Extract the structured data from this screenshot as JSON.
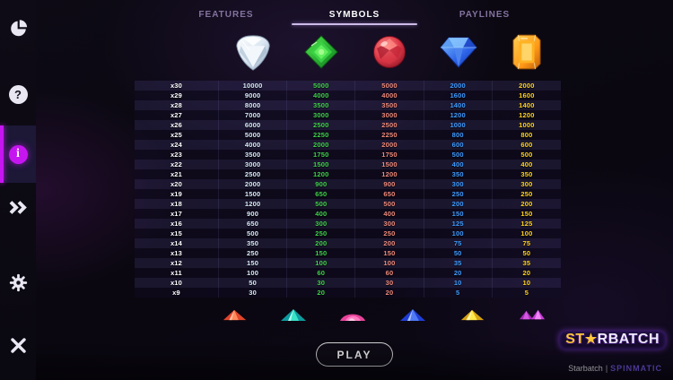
{
  "colors": {
    "accent_magenta": "#c516f0",
    "tab_inactive": "#84739f",
    "tab_active": "#ffffff",
    "underline": "#cdbbe9",
    "logo_gold": "#ffc83a",
    "provider_purple": "#7a5cf0"
  },
  "sidebar": {
    "icons": [
      "pie-chart-icon",
      "help-icon",
      "info-icon",
      "skip-forward-icon",
      "settings-gear-icon",
      "close-icon"
    ],
    "active_item": "info",
    "help_glyph": "?",
    "info_glyph": "i"
  },
  "tabs": [
    {
      "label": "FEATURES",
      "active": false
    },
    {
      "label": "SYMBOLS",
      "active": true
    },
    {
      "label": "PAYLINES",
      "active": false
    }
  ],
  "paytable": {
    "symbols": [
      "white-diamond",
      "green-gem",
      "red-gem",
      "blue-diamond",
      "orange-gem"
    ],
    "value_colors": [
      "#d9ecfb",
      "#3fd34a",
      "#f08a7a",
      "#3d9bff",
      "#ffd21f"
    ],
    "rows": [
      {
        "multiplier": "x30",
        "values": [
          10000,
          5000,
          5000,
          2000,
          2000
        ]
      },
      {
        "multiplier": "x29",
        "values": [
          9000,
          4000,
          4000,
          1600,
          1600
        ]
      },
      {
        "multiplier": "x28",
        "values": [
          8000,
          3500,
          3500,
          1400,
          1400
        ]
      },
      {
        "multiplier": "x27",
        "values": [
          7000,
          3000,
          3000,
          1200,
          1200
        ]
      },
      {
        "multiplier": "x26",
        "values": [
          6000,
          2500,
          2500,
          1000,
          1000
        ]
      },
      {
        "multiplier": "x25",
        "values": [
          5000,
          2250,
          2250,
          800,
          800
        ]
      },
      {
        "multiplier": "x24",
        "values": [
          4000,
          2000,
          2000,
          600,
          600
        ]
      },
      {
        "multiplier": "x23",
        "values": [
          3500,
          1750,
          1750,
          500,
          500
        ]
      },
      {
        "multiplier": "x22",
        "values": [
          3000,
          1500,
          1500,
          400,
          400
        ]
      },
      {
        "multiplier": "x21",
        "values": [
          2500,
          1200,
          1200,
          350,
          350
        ]
      },
      {
        "multiplier": "x20",
        "values": [
          2000,
          900,
          900,
          300,
          300
        ]
      },
      {
        "multiplier": "x19",
        "values": [
          1500,
          650,
          650,
          250,
          250
        ]
      },
      {
        "multiplier": "x18",
        "values": [
          1200,
          500,
          500,
          200,
          200
        ]
      },
      {
        "multiplier": "x17",
        "values": [
          900,
          400,
          400,
          150,
          150
        ]
      },
      {
        "multiplier": "x16",
        "values": [
          650,
          300,
          300,
          125,
          125
        ]
      },
      {
        "multiplier": "x15",
        "values": [
          500,
          250,
          250,
          100,
          100
        ]
      },
      {
        "multiplier": "x14",
        "values": [
          350,
          200,
          200,
          75,
          75
        ]
      },
      {
        "multiplier": "x13",
        "values": [
          250,
          150,
          150,
          50,
          50
        ]
      },
      {
        "multiplier": "x12",
        "values": [
          150,
          100,
          100,
          35,
          35
        ]
      },
      {
        "multiplier": "x11",
        "values": [
          100,
          60,
          60,
          20,
          20
        ]
      },
      {
        "multiplier": "x10",
        "values": [
          50,
          30,
          30,
          10,
          10
        ]
      },
      {
        "multiplier": "x9",
        "values": [
          30,
          20,
          20,
          5,
          5
        ]
      }
    ],
    "small_symbols": [
      "small-red-gem",
      "small-teal-gem",
      "small-pink-gem",
      "small-blue-gem",
      "small-yellow-gem",
      "small-purple-gem"
    ]
  },
  "footer": {
    "play_label": "PLAY",
    "logo": {
      "part1": "ST",
      "star": "★",
      "part2": "RBATCH"
    },
    "brand": "Starbatch",
    "separator": "|",
    "provider": "SPINMATIC"
  }
}
